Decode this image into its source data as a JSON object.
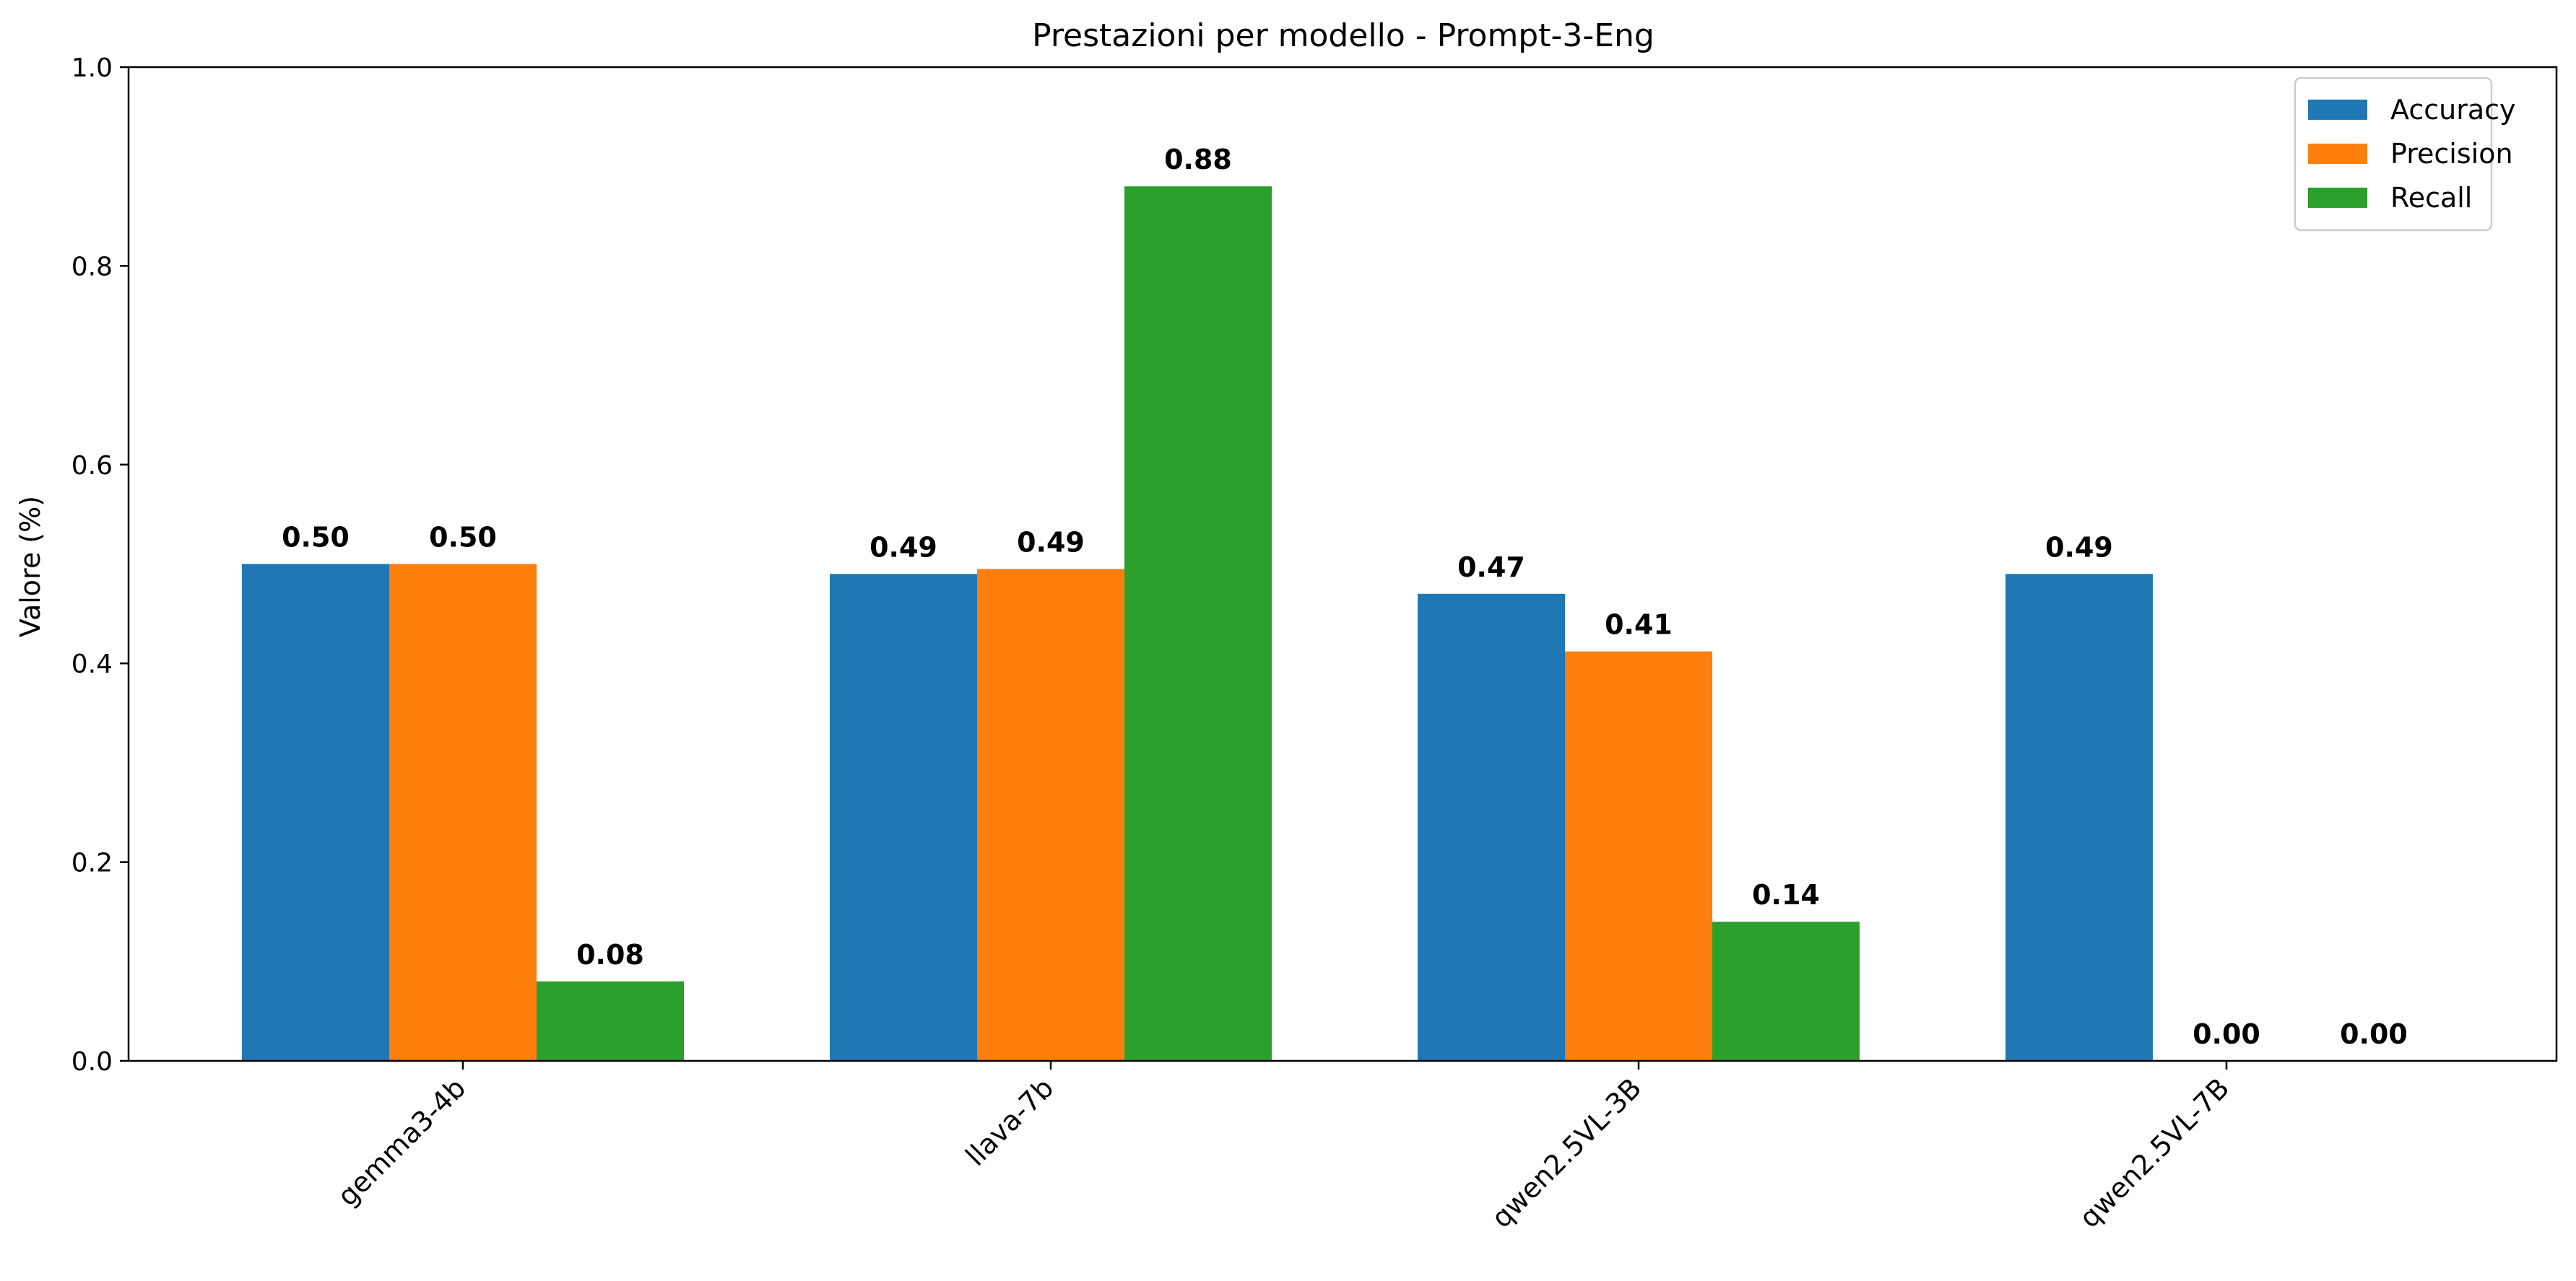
{
  "chart_data": {
    "type": "bar",
    "title": "Prestazioni per modello - Prompt-3-Eng",
    "xlabel": "",
    "ylabel": "Valore (%)",
    "ylim": [
      0,
      1.0
    ],
    "yticks": [
      "0.0",
      "0.2",
      "0.4",
      "0.6",
      "0.8",
      "1.0"
    ],
    "grid": false,
    "legend_position": "top-right",
    "categories": [
      "gemma3-4b",
      "llava-7b",
      "qwen2.5VL-3B",
      "qwen2.5VL-7B"
    ],
    "series": [
      {
        "name": "Accuracy",
        "color": "#1f77b4",
        "values": [
          0.5,
          0.49,
          0.47,
          0.49
        ],
        "labels": [
          "0.50",
          "0.49",
          "0.47",
          "0.49"
        ]
      },
      {
        "name": "Precision",
        "color": "#ff7f0e",
        "values": [
          0.5,
          0.495,
          0.412,
          0.0
        ],
        "labels": [
          "0.50",
          "0.49",
          "0.41",
          "0.00"
        ]
      },
      {
        "name": "Recall",
        "color": "#2ca02c",
        "values": [
          0.08,
          0.88,
          0.14,
          0.0
        ],
        "labels": [
          "0.08",
          "0.88",
          "0.14",
          "0.00"
        ]
      }
    ]
  }
}
